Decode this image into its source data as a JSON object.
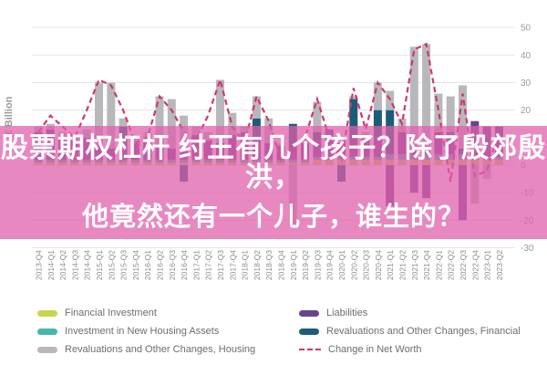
{
  "overlay": {
    "line1": "股票期权杠杆 纣王有几个孩子？除了殷郊殷洪，",
    "line2": "他竟然还有一个儿子，谁生的？",
    "background_color": "#e05fac",
    "text_color": "#ffffff"
  },
  "chart_data": {
    "type": "bar",
    "subtype": "stacked-bar-with-line",
    "title": "",
    "ylabel": "€ Billion",
    "ylim": [
      -30,
      50
    ],
    "yticks": [
      50,
      40,
      30,
      20,
      10,
      0,
      -10,
      -20,
      -30
    ],
    "grid": true,
    "legend_position": "bottom",
    "categories": [
      "2013-Q4",
      "2014-Q1",
      "2014-Q2",
      "2014-Q3",
      "2014-Q4",
      "2015-Q1",
      "2015-Q2",
      "2015-Q3",
      "2015-Q4",
      "2016-Q1",
      "2016-Q2",
      "2016-Q3",
      "2016-Q4",
      "2017-Q1",
      "2017-Q2",
      "2017-Q3",
      "2017-Q4",
      "2018-Q1",
      "2018-Q2",
      "2018-Q3",
      "2018-Q4",
      "2019-Q1",
      "2019-Q2",
      "2019-Q3",
      "2019-Q4",
      "2020-Q1",
      "2020-Q2",
      "2020-Q3",
      "2020-Q4",
      "2021-Q1",
      "2021-Q2",
      "2021-Q3",
      "2021-Q4",
      "2022-Q1",
      "2022-Q2",
      "2022-Q3",
      "2022-Q4",
      "2023-Q1",
      "2023-Q2"
    ],
    "series": [
      {
        "name": "Financial Investment",
        "color": "#c8d64e",
        "values": [
          1,
          1,
          1,
          1,
          1,
          1,
          1,
          1,
          1,
          1,
          1,
          1,
          1,
          1,
          1,
          1,
          1,
          1,
          1,
          1,
          1,
          1,
          1,
          2,
          2,
          2,
          2,
          2,
          2,
          2,
          2,
          2,
          2,
          2,
          2,
          2,
          2,
          2,
          2
        ]
      },
      {
        "name": "Investment in New Housing Assets",
        "color": "#45b7ac",
        "values": [
          1,
          1,
          1,
          1,
          1,
          1,
          1,
          1,
          1,
          1,
          1,
          1,
          1,
          1,
          1,
          1,
          1,
          1,
          1,
          1,
          1,
          1,
          1,
          1,
          1,
          1,
          1,
          1,
          1,
          2,
          2,
          2,
          2,
          2,
          2,
          2,
          1,
          1,
          1
        ]
      },
      {
        "name": "Liabilities",
        "color": "#66458f",
        "values": [
          9,
          11,
          8,
          7,
          8,
          5,
          4,
          6,
          6,
          7,
          5,
          4,
          4,
          9,
          7,
          5,
          9,
          10,
          7,
          6,
          5,
          4,
          6,
          6,
          10,
          5,
          6,
          7,
          7,
          -15,
          8,
          -10,
          -12,
          6,
          8,
          -20,
          13,
          11,
          10
        ]
      },
      {
        "name": "Revaluations and Other Changes, Financial",
        "color": "#1d5c78",
        "values": [
          1,
          0,
          0,
          0,
          0,
          0,
          0,
          6,
          0,
          0,
          0,
          0,
          -6,
          0,
          0,
          1,
          0,
          0,
          8,
          0,
          0,
          9,
          0,
          3,
          0,
          -6,
          15,
          0,
          10,
          16,
          0,
          1,
          1,
          2,
          0,
          2,
          0,
          0,
          1
        ]
      },
      {
        "name": "Revaluations and Other Changes, Housing",
        "color": "#b8b8bc",
        "values": [
          2,
          2,
          2,
          2,
          3,
          23,
          24,
          3,
          2,
          3,
          18,
          18,
          12,
          3,
          3,
          23,
          8,
          2,
          8,
          9,
          1,
          -22,
          2,
          11,
          0,
          0,
          1,
          2,
          10,
          7,
          5,
          38,
          39,
          14,
          13,
          23,
          -14,
          -5,
          0
        ]
      }
    ],
    "line_series": {
      "name": "Change in Net Worth",
      "color": "#d2356e",
      "style": "dashed",
      "values": [
        12,
        18,
        14,
        10,
        20,
        31,
        29,
        20,
        8,
        10,
        25,
        20,
        12,
        9,
        18,
        31,
        14,
        8,
        25,
        16,
        2,
        6,
        10,
        24,
        10,
        2,
        28,
        13,
        30,
        24,
        15,
        42,
        44,
        20,
        -6,
        26,
        -4,
        -2,
        12
      ]
    },
    "axis_text_color": "#9b9b9b",
    "xlabel_text_color": "#8d8d8d",
    "gridline_color": "#e5e5e6"
  },
  "legend": {
    "left_column": [
      0,
      1,
      4
    ],
    "right_column": [
      2,
      3,
      "line"
    ]
  }
}
